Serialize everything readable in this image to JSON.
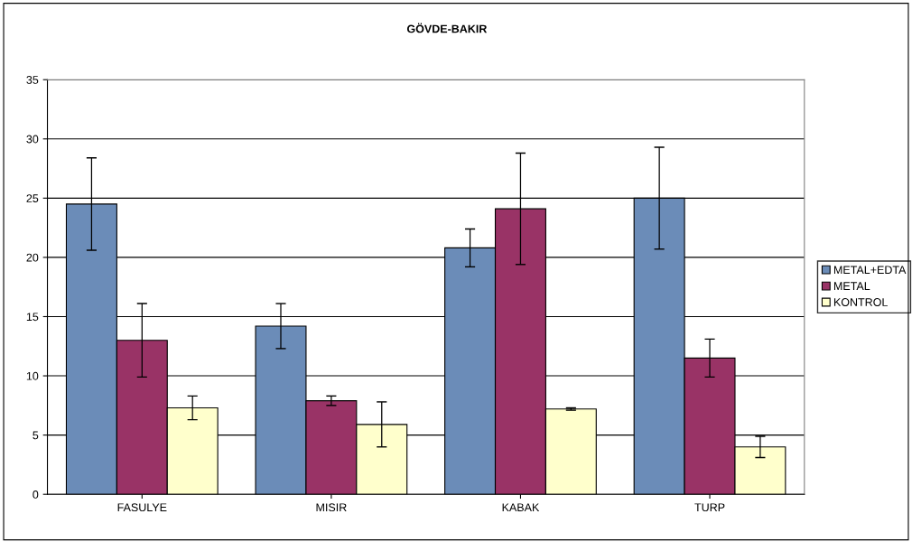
{
  "chart_data": {
    "type": "bar",
    "title": "GÖVDE-BAKIR",
    "categories": [
      "FASULYE",
      "MISIR",
      "KABAK",
      "TURP"
    ],
    "series": [
      {
        "name": "METAL+EDTA",
        "color": "#6b8cb8",
        "values": [
          24.5,
          14.2,
          20.8,
          25.0
        ],
        "errors": [
          3.9,
          1.9,
          1.6,
          4.3
        ]
      },
      {
        "name": "METAL",
        "color": "#993366",
        "values": [
          13.0,
          7.9,
          24.1,
          11.5
        ],
        "errors": [
          3.1,
          0.4,
          4.7,
          1.6
        ]
      },
      {
        "name": "KONTROL",
        "color": "#ffffcc",
        "values": [
          7.3,
          5.9,
          7.2,
          4.0
        ],
        "errors": [
          1.0,
          1.9,
          0.1,
          0.9
        ]
      }
    ],
    "ylim": [
      0,
      35
    ],
    "yticks": [
      0,
      5,
      10,
      15,
      20,
      25,
      30,
      35
    ],
    "grid": "y",
    "legend": "right"
  }
}
